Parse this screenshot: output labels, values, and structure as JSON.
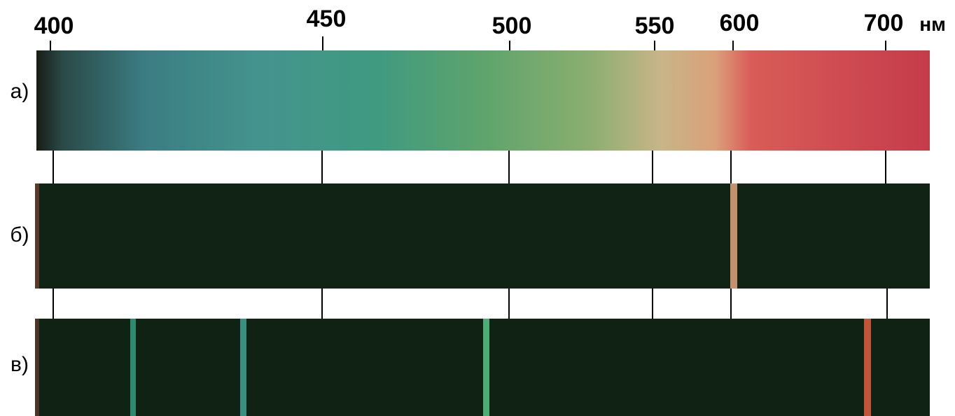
{
  "scale": {
    "ticks": [
      "400",
      "450",
      "500",
      "550",
      "600",
      "700"
    ],
    "unit": "нм"
  },
  "rows": [
    {
      "label": "а)"
    },
    {
      "label": "б)"
    },
    {
      "label": "в)"
    }
  ]
}
